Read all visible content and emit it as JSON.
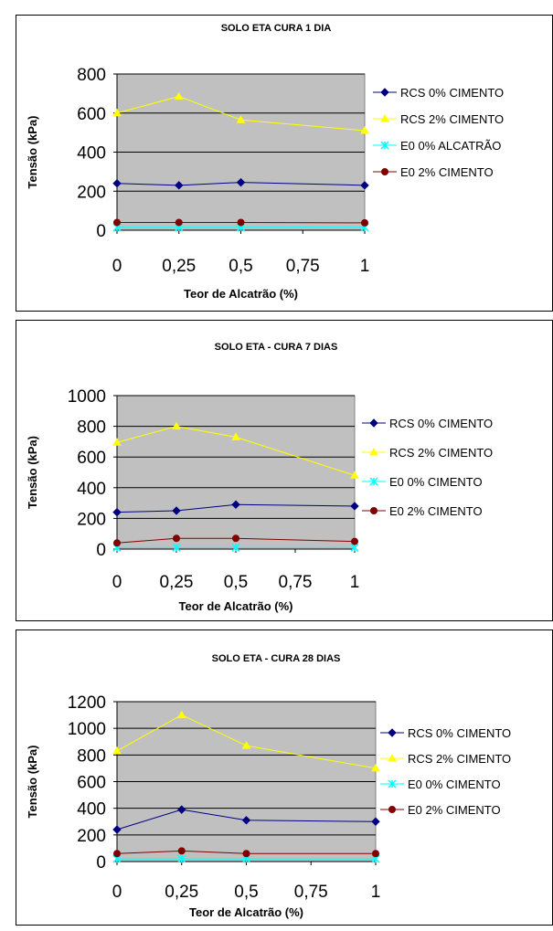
{
  "colors": {
    "plot_bg": "#c0c0c0",
    "rcs0": "#000080",
    "rcs2": "#ffff00",
    "e00": "#00ffff",
    "e02": "#800000"
  },
  "chart_data": [
    {
      "type": "line",
      "title": "SOLO ETA CURA 1 DIA",
      "xlabel": "Teor de Alcatrão (%)",
      "ylabel": "Tensão (kPa)",
      "x": [
        0,
        0.25,
        0.5,
        1
      ],
      "xticks": [
        "0",
        "0,25",
        "0,5",
        "0,75",
        "1"
      ],
      "xtick_values": [
        0,
        0.25,
        0.5,
        0.75,
        1
      ],
      "ylim": [
        0,
        800
      ],
      "yticks": [
        0,
        200,
        400,
        600,
        800
      ],
      "grid": true,
      "legend_position": "right",
      "series": [
        {
          "name": "RCS  0% CIMENTO",
          "marker": "diamond",
          "color": "#000080",
          "values": [
            240,
            230,
            245,
            230
          ]
        },
        {
          "name": "RCS 2% CIMENTO",
          "marker": "triangle",
          "color": "#ffff00",
          "values": [
            600,
            685,
            565,
            510
          ]
        },
        {
          "name": "E0 0% ALCATRÃO",
          "marker": "star",
          "color": "#00ffff",
          "values": [
            15,
            15,
            15,
            15
          ]
        },
        {
          "name": "E0 2% CIMENTO",
          "marker": "circle",
          "color": "#800000",
          "values": [
            40,
            40,
            40,
            38
          ]
        }
      ]
    },
    {
      "type": "line",
      "title": "SOLO ETA - CURA 7 DIAS",
      "xlabel": "Teor de Alcatrão (%)",
      "ylabel": "Tensão (kPa)",
      "x": [
        0,
        0.25,
        0.5,
        1
      ],
      "xticks": [
        "0",
        "0,25",
        "0,5",
        "0,75",
        "1"
      ],
      "xtick_values": [
        0,
        0.25,
        0.5,
        0.75,
        1
      ],
      "ylim": [
        0,
        1000
      ],
      "yticks": [
        0,
        200,
        400,
        600,
        800,
        1000
      ],
      "grid": true,
      "legend_position": "right",
      "series": [
        {
          "name": "RCS  0% CIMENTO",
          "marker": "diamond",
          "color": "#000080",
          "values": [
            240,
            250,
            290,
            280
          ]
        },
        {
          "name": "RCS 2% CIMENTO",
          "marker": "triangle",
          "color": "#ffff00",
          "values": [
            695,
            800,
            730,
            480
          ]
        },
        {
          "name": "E0 0% CIMENTO",
          "marker": "star",
          "color": "#00ffff",
          "values": [
            10,
            10,
            10,
            10
          ]
        },
        {
          "name": "E0 2% CIMENTO",
          "marker": "circle",
          "color": "#800000",
          "values": [
            40,
            70,
            70,
            50
          ]
        }
      ]
    },
    {
      "type": "line",
      "title": "SOLO ETA - CURA 28 DIAS",
      "xlabel": "Teor de Alcatrão (%)",
      "ylabel": "Tensão (kPa)",
      "x": [
        0,
        0.25,
        0.5,
        1
      ],
      "xticks": [
        "0",
        "0,25",
        "0,5",
        "0,75",
        "1"
      ],
      "xtick_values": [
        0,
        0.25,
        0.5,
        0.75,
        1
      ],
      "ylim": [
        0,
        1200
      ],
      "yticks": [
        0,
        200,
        400,
        600,
        800,
        1000,
        1200
      ],
      "grid": true,
      "legend_position": "right",
      "series": [
        {
          "name": "RCS 0% CIMENTO",
          "marker": "diamond",
          "color": "#000080",
          "values": [
            240,
            390,
            310,
            300
          ]
        },
        {
          "name": "RCS 2% CIMENTO",
          "marker": "triangle",
          "color": "#ffff00",
          "values": [
            830,
            1100,
            870,
            700
          ]
        },
        {
          "name": "E0 0% CIMENTO",
          "marker": "star",
          "color": "#00ffff",
          "values": [
            20,
            20,
            20,
            20
          ]
        },
        {
          "name": "E0 2% CIMENTO",
          "marker": "circle",
          "color": "#800000",
          "values": [
            60,
            80,
            60,
            60
          ]
        }
      ]
    }
  ]
}
